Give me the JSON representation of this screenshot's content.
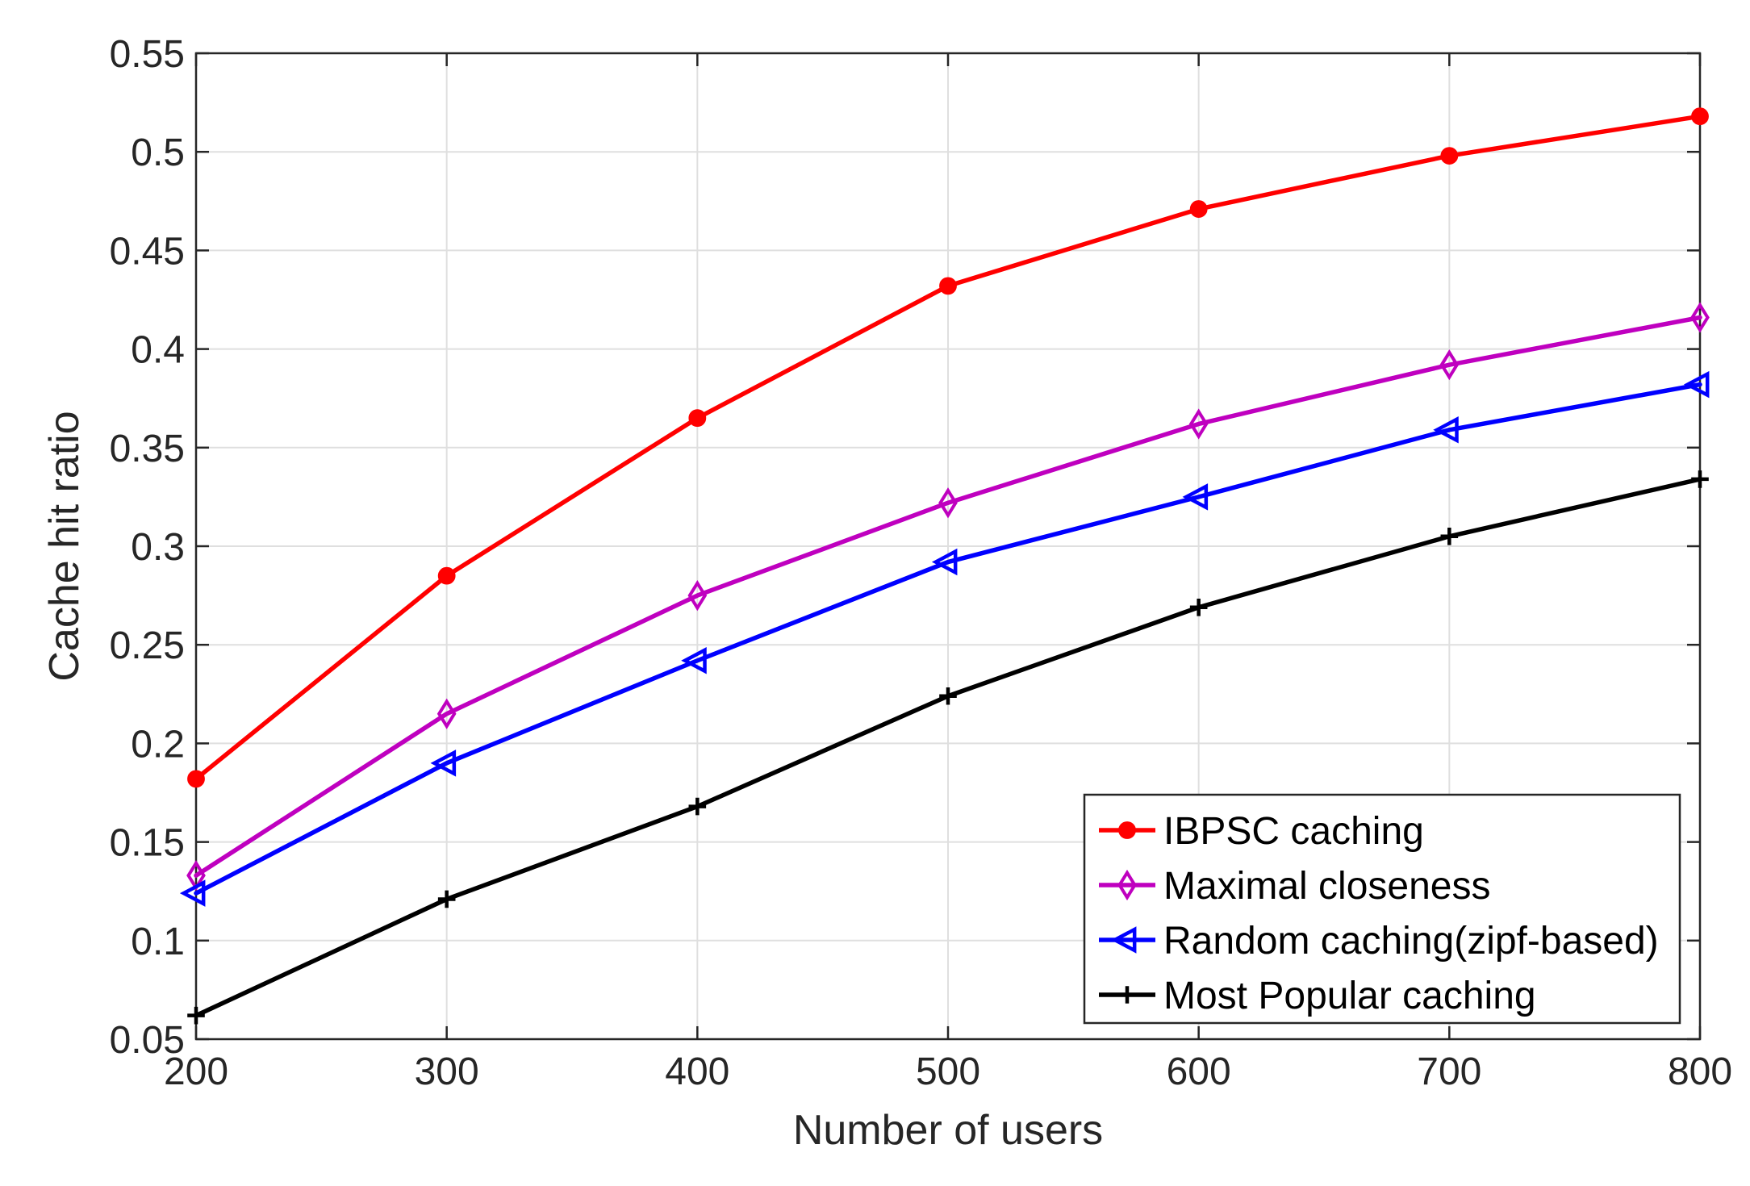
{
  "chart_data": {
    "type": "line",
    "title": "",
    "xlabel": "Number of users",
    "ylabel": "Cache hit ratio",
    "x": [
      200,
      300,
      400,
      500,
      600,
      700,
      800
    ],
    "xlim": [
      200,
      800
    ],
    "ylim": [
      0.05,
      0.55
    ],
    "xticks": [
      "200",
      "300",
      "400",
      "500",
      "600",
      "700",
      "800"
    ],
    "yticks": [
      "0.05",
      "0.1",
      "0.15",
      "0.2",
      "0.25",
      "0.3",
      "0.35",
      "0.4",
      "0.45",
      "0.5",
      "0.55"
    ],
    "grid": true,
    "legend_position": "bottom-right",
    "series": [
      {
        "name": "IBPSC caching",
        "color": "#ff0000",
        "marker": "circle",
        "values": [
          0.182,
          0.285,
          0.365,
          0.432,
          0.471,
          0.498,
          0.518
        ]
      },
      {
        "name": "Maximal closeness",
        "color": "#bf00bf",
        "marker": "diamond",
        "values": [
          0.133,
          0.215,
          0.275,
          0.322,
          0.362,
          0.392,
          0.416
        ]
      },
      {
        "name": "Random caching(zipf-based)",
        "color": "#0000ff",
        "marker": "triangle-left",
        "values": [
          0.124,
          0.19,
          0.242,
          0.292,
          0.325,
          0.359,
          0.382
        ]
      },
      {
        "name": "Most Popular caching",
        "color": "#000000",
        "marker": "plus",
        "values": [
          0.062,
          0.121,
          0.168,
          0.224,
          0.269,
          0.305,
          0.334
        ]
      }
    ]
  }
}
